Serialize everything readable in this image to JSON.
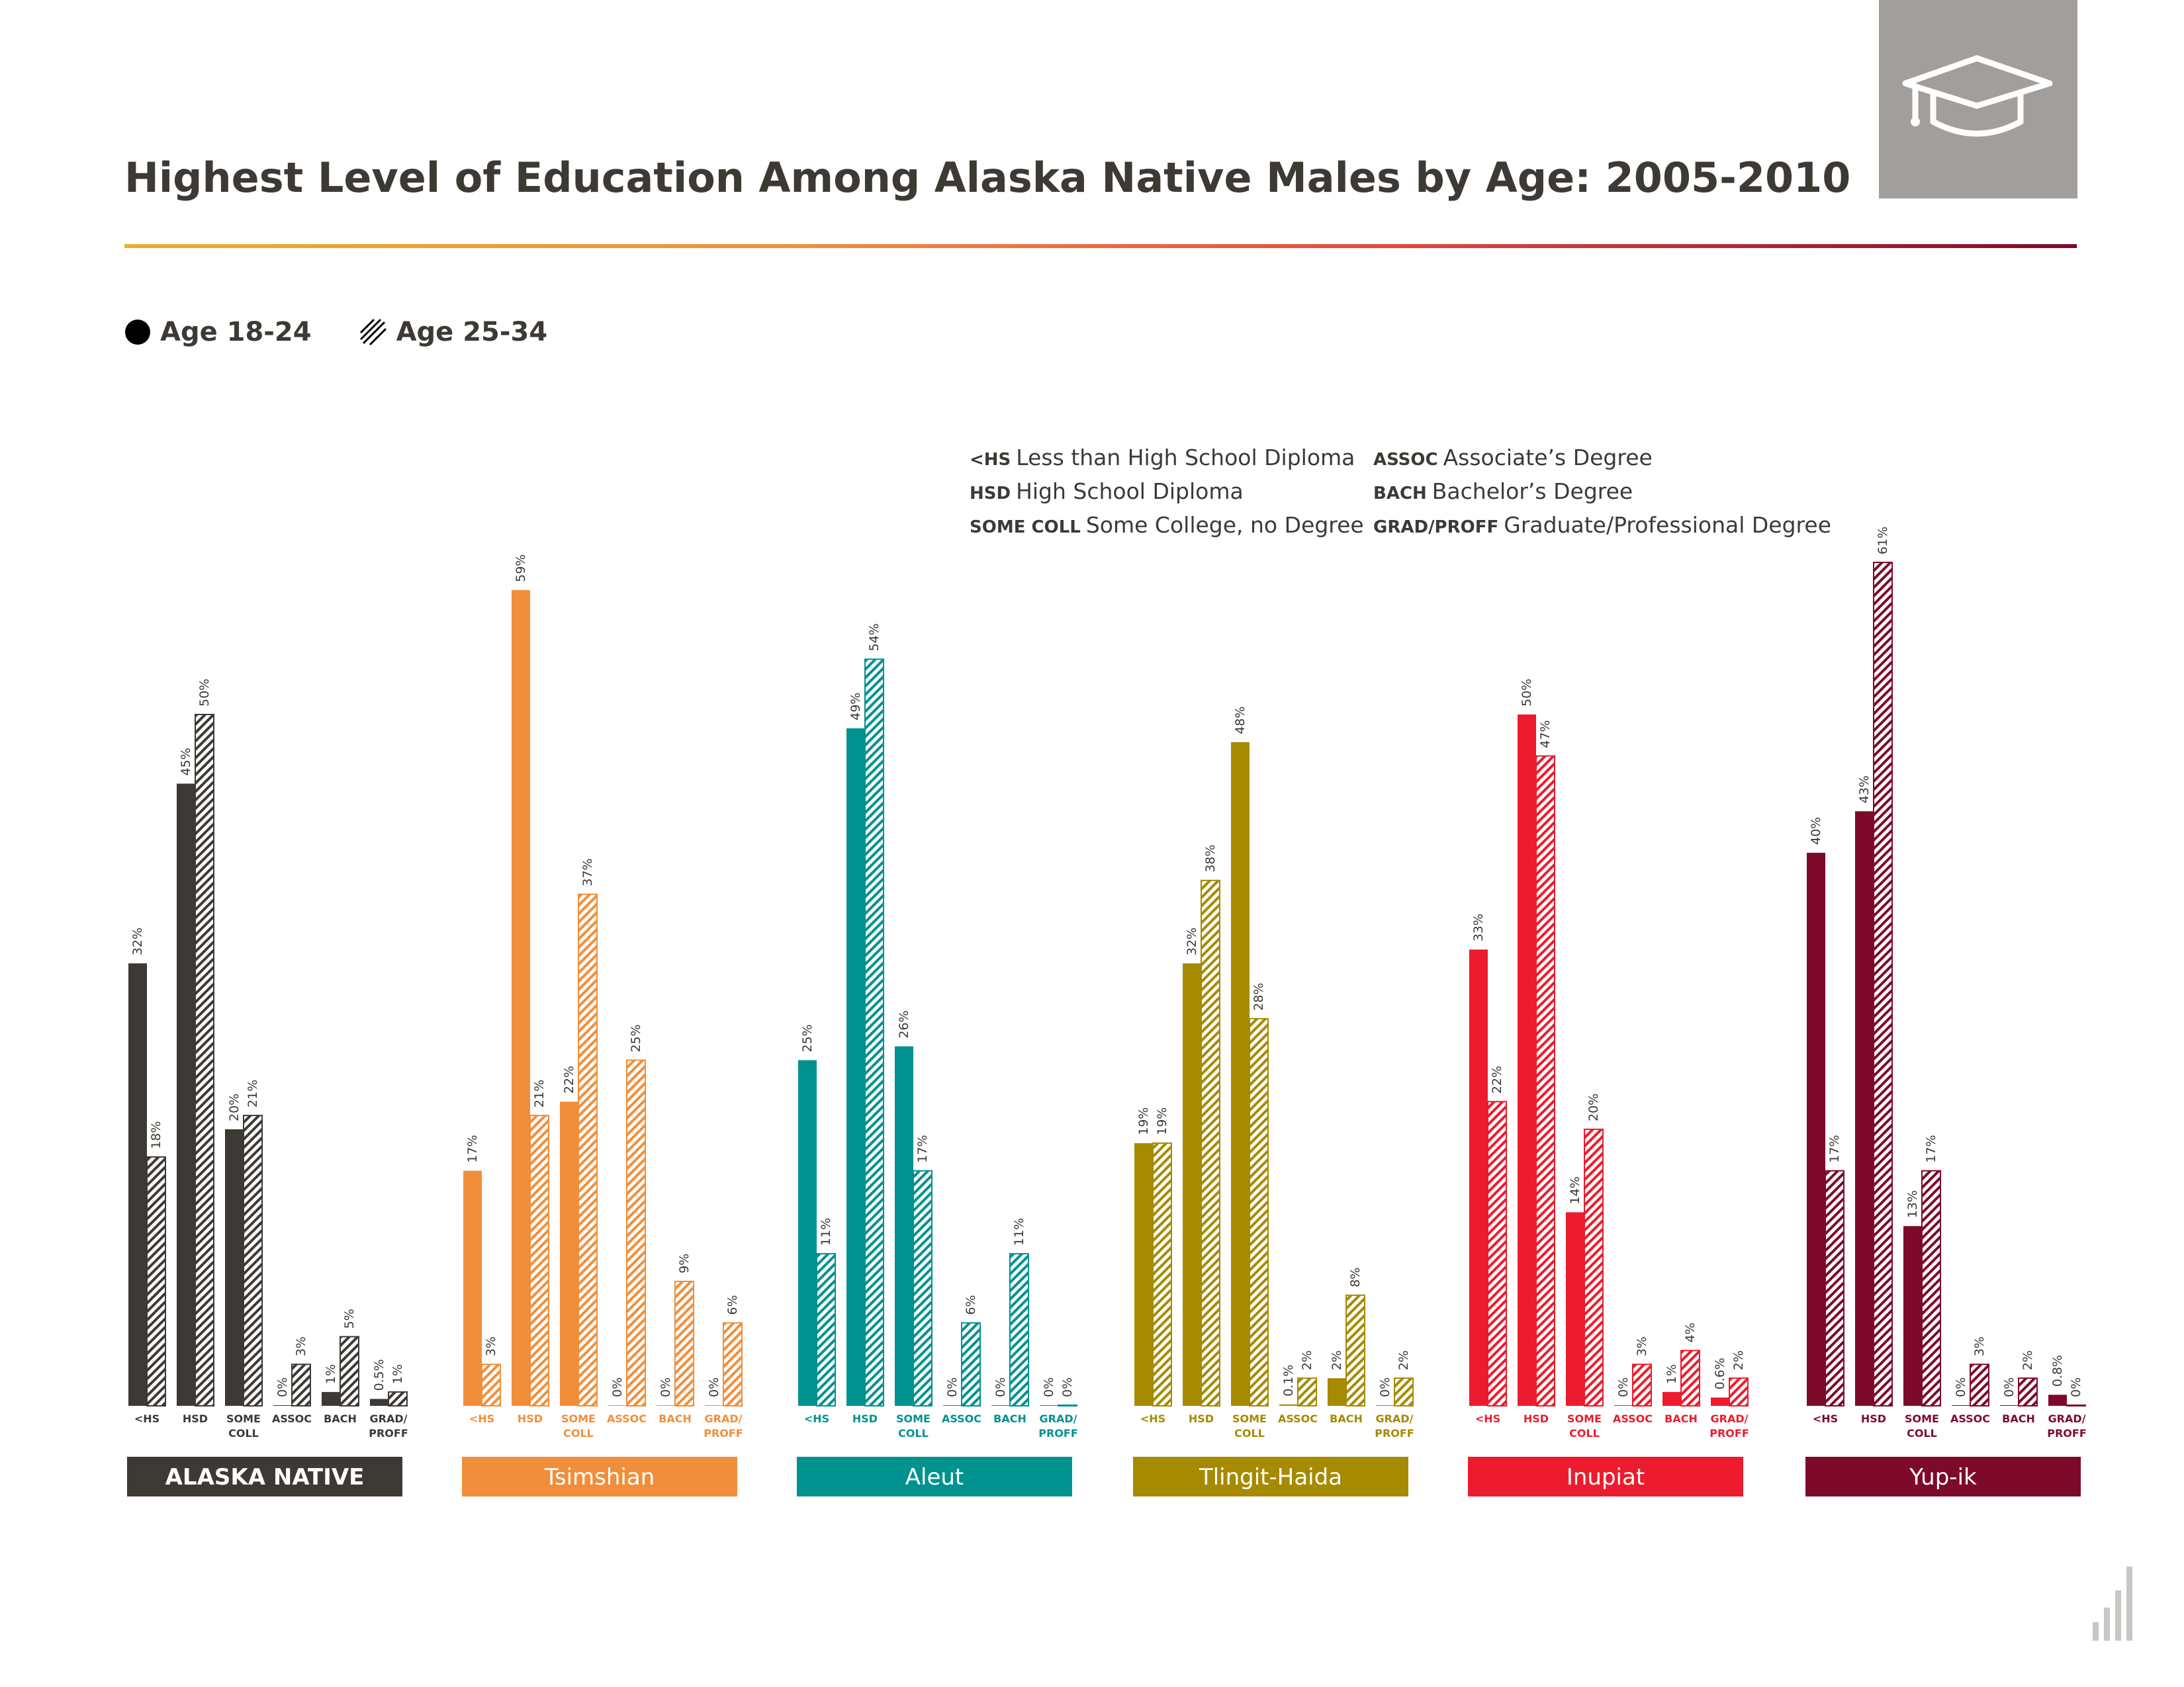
{
  "title": "Highest Level of Education Among Alaska Native Males by Age: 2005-2010",
  "icon": "graduation-cap-icon",
  "legend": [
    {
      "label": "Age 18-24",
      "style": "solid"
    },
    {
      "label": "Age 25-34",
      "style": "hatched"
    }
  ],
  "abbreviations": {
    "left": [
      {
        "abbr": "<HS",
        "meaning": "Less than High School Diploma"
      },
      {
        "abbr": "HSD",
        "meaning": "High School Diploma"
      },
      {
        "abbr": "SOME COLL",
        "meaning": "Some College, no Degree"
      }
    ],
    "right": [
      {
        "abbr": "ASSOC",
        "meaning": "Associate’s Degree"
      },
      {
        "abbr": "BACH",
        "meaning": "Bachelor’s Degree"
      },
      {
        "abbr": "GRAD/PROFF",
        "meaning": "Graduate/Professional Degree"
      }
    ]
  },
  "chart_data": {
    "type": "bar",
    "value_unit": "%",
    "ylim": [
      0,
      61
    ],
    "grid": false,
    "legend_position": "top-left",
    "series_names": [
      "Age 18-24",
      "Age 25-34"
    ],
    "categories": [
      [
        "<HS"
      ],
      [
        "HSD"
      ],
      [
        "SOME",
        "COLL"
      ],
      [
        "ASSOC"
      ],
      [
        "BACH"
      ],
      [
        "GRAD/",
        "PROFF"
      ]
    ],
    "groups": [
      {
        "name": "ALASKA NATIVE",
        "color": "#3d3935",
        "series": [
          {
            "name": "Age 18-24",
            "values": [
              32,
              45,
              20,
              0,
              1,
              0.5
            ],
            "labels": [
              "32%",
              "45%",
              "20%",
              "0%",
              "1%",
              "0.5%"
            ]
          },
          {
            "name": "Age 25-34",
            "values": [
              18,
              50,
              21,
              3,
              5,
              1
            ],
            "labels": [
              "18%",
              "50%",
              "21%",
              "3%",
              "5%",
              "1%"
            ]
          }
        ]
      },
      {
        "name": "Tsimshian",
        "color": "#f18e3b",
        "series": [
          {
            "name": "Age 18-24",
            "values": [
              17,
              59,
              22,
              0,
              0,
              0
            ],
            "labels": [
              "17%",
              "59%",
              "22%",
              "0%",
              "0%",
              "0%"
            ]
          },
          {
            "name": "Age 25-34",
            "values": [
              3,
              21,
              37,
              25,
              9,
              6
            ],
            "labels": [
              "3%",
              "21%",
              "37%",
              "25%",
              "9%",
              "6%"
            ]
          }
        ]
      },
      {
        "name": "Aleut",
        "color": "#00928f",
        "series": [
          {
            "name": "Age 18-24",
            "values": [
              25,
              49,
              26,
              0,
              0,
              0
            ],
            "labels": [
              "25%",
              "49%",
              "26%",
              "0%",
              "0%",
              "0%"
            ]
          },
          {
            "name": "Age 25-34",
            "values": [
              11,
              54,
              17,
              6,
              11,
              0
            ],
            "labels": [
              "11%",
              "54%",
              "17%",
              "6%",
              "11%",
              "0%"
            ]
          }
        ]
      },
      {
        "name": "Tlingit-Haida",
        "color": "#a68a00",
        "series": [
          {
            "name": "Age 18-24",
            "values": [
              19,
              32,
              48,
              0.1,
              2,
              0
            ],
            "labels": [
              "19%",
              "32%",
              "48%",
              "0.1%",
              "2%",
              "0%"
            ]
          },
          {
            "name": "Age 25-34",
            "values": [
              19,
              38,
              28,
              2,
              8,
              2
            ],
            "labels": [
              "19%",
              "38%",
              "28%",
              "2%",
              "8%",
              "2%"
            ]
          }
        ]
      },
      {
        "name": "Inupiat",
        "color": "#ec1c2e",
        "series": [
          {
            "name": "Age 18-24",
            "values": [
              33,
              50,
              14,
              0,
              1,
              0.6
            ],
            "labels": [
              "33%",
              "50%",
              "14%",
              "0%",
              "1%",
              "0.6%"
            ]
          },
          {
            "name": "Age 25-34",
            "values": [
              22,
              47,
              20,
              3,
              4,
              2
            ],
            "labels": [
              "22%",
              "47%",
              "20%",
              "3%",
              "4%",
              "2%"
            ]
          }
        ]
      },
      {
        "name": "Yup-ik",
        "color": "#7e0a2a",
        "series": [
          {
            "name": "Age 18-24",
            "values": [
              40,
              43,
              13,
              0,
              0,
              0.8
            ],
            "labels": [
              "40%",
              "43%",
              "13%",
              "0%",
              "0%",
              "0.8%"
            ]
          },
          {
            "name": "Age 25-34",
            "values": [
              17,
              61,
              17,
              3,
              2,
              0
            ],
            "labels": [
              "17%",
              "61%",
              "17%",
              "3%",
              "2%",
              "0%"
            ]
          }
        ]
      }
    ]
  }
}
